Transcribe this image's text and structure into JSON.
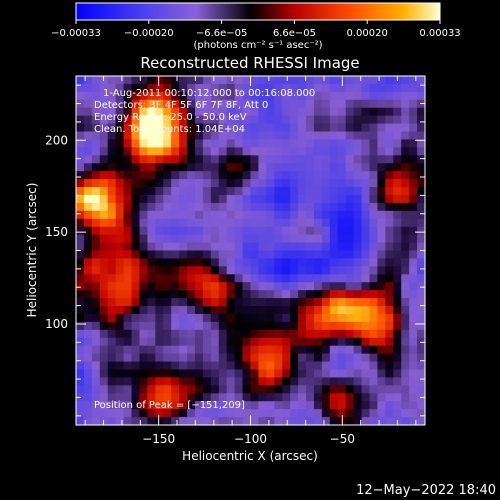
{
  "chart_data": {
    "type": "heatmap",
    "title": "Reconstructed RHESSI Image",
    "xlabel": "Heliocentric X (arcsec)",
    "ylabel": "Heliocentric Y (arcsec)",
    "xlim": [
      -195,
      -5
    ],
    "ylim": [
      45,
      235
    ],
    "x_ticks": [
      -150,
      -100,
      -50
    ],
    "y_ticks": [
      100,
      150,
      200
    ],
    "colorbar": {
      "label": "(photons cm⁻² s⁻¹ asec⁻²)",
      "range": [
        -0.00033,
        0.00033
      ],
      "ticks": [
        "-0.00033",
        "-0.00020",
        "-6.6e-05",
        "6.6e-05",
        "0.00020",
        "0.00033"
      ],
      "ticks_rendered": [
        "−0.00033",
        "−0.00020",
        "−6.6e−05",
        "6.6e−05",
        "0.00020",
        "0.00033"
      ],
      "colors": [
        "#0000ff",
        "#5a3cff",
        "#8c5adc",
        "#000000",
        "#b40000",
        "#ff4000",
        "#ffa000",
        "#ffffa0"
      ]
    },
    "info_lines": [
      "1-Aug-2011 00:10:12.000 to 00:16:08.000",
      "Detectors: 3F 4F 5F 6F 7F 8F, Att 0",
      "Energy Range: 25.0 - 50.0 keV",
      "Clean. Total counts: 1.04E+04"
    ],
    "peak_label": "Position of Peak = [−151,209]",
    "peak_position": [
      -151,
      209
    ],
    "grid": false
  },
  "footer": {
    "timestamp": "12−May−2022 18:40"
  }
}
